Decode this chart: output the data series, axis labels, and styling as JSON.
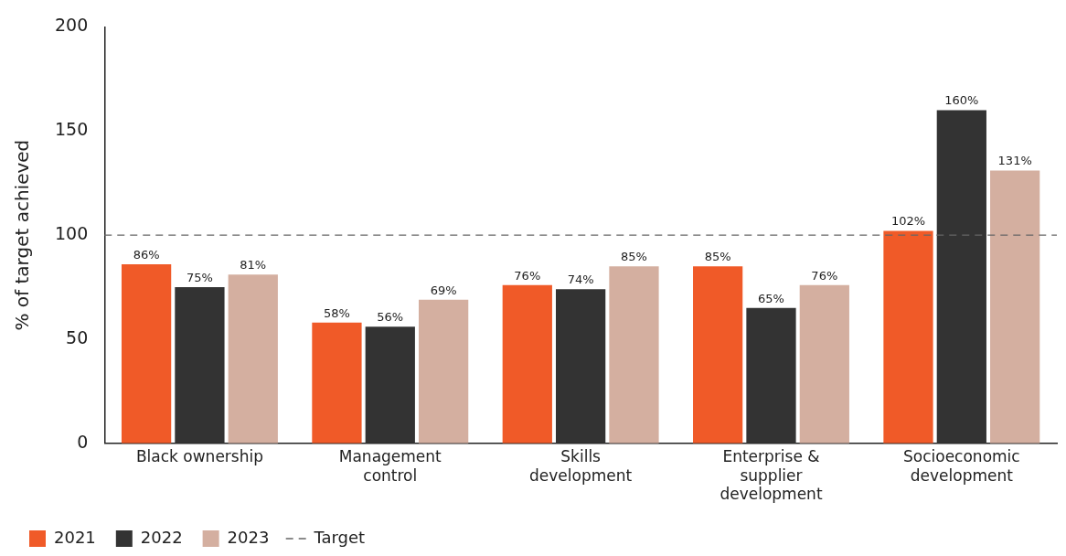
{
  "chart_data": {
    "type": "bar",
    "ylabel": "% of target achieved",
    "categories": [
      "Black ownership",
      "Management control",
      "Skills development",
      "Enterprise & supplier development",
      "Socioeconomic development"
    ],
    "series": [
      {
        "name": "2021",
        "color": "#f05a28",
        "values": [
          86,
          58,
          76,
          85,
          102
        ],
        "value_labels": [
          "86%",
          "58%",
          "76%",
          "85%",
          "102%"
        ]
      },
      {
        "name": "2022",
        "color": "#333333",
        "values": [
          75,
          56,
          74,
          65,
          160
        ],
        "value_labels": [
          "75%",
          "56%",
          "74%",
          "65%",
          "160%"
        ]
      },
      {
        "name": "2023",
        "color": "#d4afa0",
        "values": [
          81,
          69,
          85,
          76,
          131
        ],
        "value_labels": [
          "81%",
          "69%",
          "85%",
          "76%",
          "131%"
        ]
      }
    ],
    "ylim": [
      0,
      200
    ],
    "yticks": [
      0,
      50,
      100,
      150,
      200
    ],
    "grid": false,
    "legend": "bottom left",
    "ref_lines": [
      {
        "axis": "y",
        "value": 100,
        "label": "Target",
        "color": "#666666",
        "line_style": "dashed"
      }
    ]
  }
}
